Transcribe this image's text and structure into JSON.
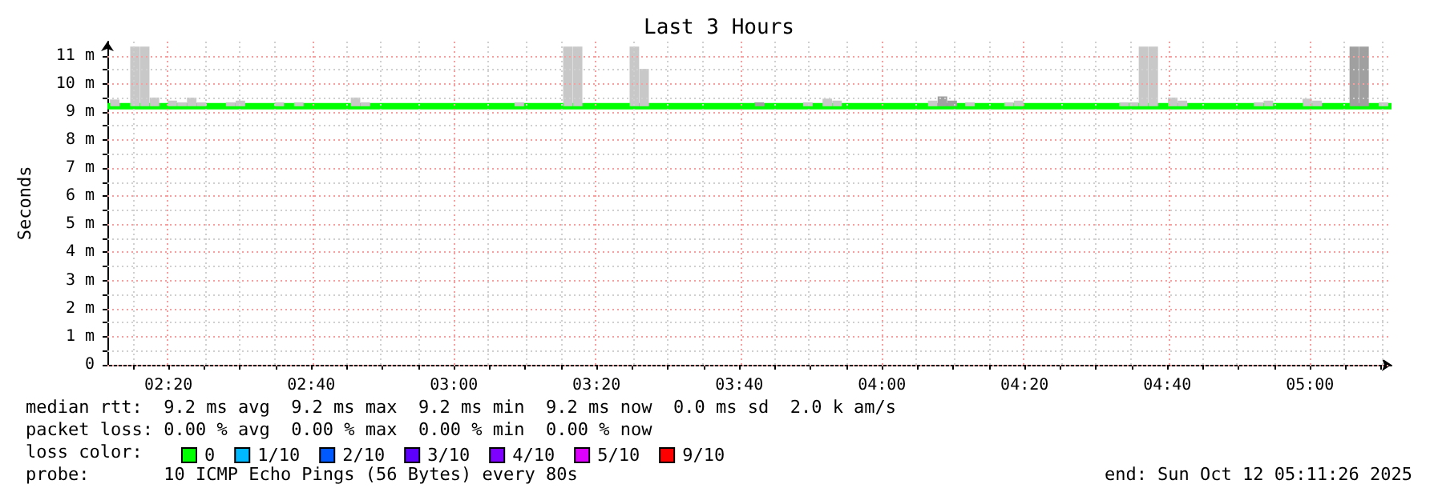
{
  "chart_data": {
    "type": "line",
    "title": "Last 3 Hours",
    "ylabel": "Seconds",
    "legend_title": "loss color:",
    "legend": "bottom",
    "grid": true,
    "marker": "none",
    "line_style": "solid",
    "x": [
      2.1906,
      5.1906
    ],
    "xlim": [
      2.1906,
      5.1906
    ],
    "xticks": [
      {
        "value": 2.25,
        "label": null
      },
      {
        "value": 2.3333,
        "label": "02:20"
      },
      {
        "value": 2.4167,
        "label": null
      },
      {
        "value": 2.5,
        "label": null
      },
      {
        "value": 2.5833,
        "label": null
      },
      {
        "value": 2.6667,
        "label": "02:40"
      },
      {
        "value": 2.75,
        "label": null
      },
      {
        "value": 2.8333,
        "label": null
      },
      {
        "value": 2.9167,
        "label": null
      },
      {
        "value": 3,
        "label": "03:00"
      },
      {
        "value": 3.0833,
        "label": null
      },
      {
        "value": 3.1667,
        "label": null
      },
      {
        "value": 3.25,
        "label": null
      },
      {
        "value": 3.3333,
        "label": "03:20"
      },
      {
        "value": 3.4167,
        "label": null
      },
      {
        "value": 3.5,
        "label": null
      },
      {
        "value": 3.5833,
        "label": null
      },
      {
        "value": 3.6667,
        "label": "03:40"
      },
      {
        "value": 3.75,
        "label": null
      },
      {
        "value": 3.8333,
        "label": null
      },
      {
        "value": 3.9167,
        "label": null
      },
      {
        "value": 4,
        "label": "04:00"
      },
      {
        "value": 4.0833,
        "label": null
      },
      {
        "value": 4.1667,
        "label": null
      },
      {
        "value": 4.25,
        "label": null
      },
      {
        "value": 4.3333,
        "label": "04:20"
      },
      {
        "value": 4.4167,
        "label": null
      },
      {
        "value": 4.5,
        "label": null
      },
      {
        "value": 4.5833,
        "label": null
      },
      {
        "value": 4.6667,
        "label": "04:40"
      },
      {
        "value": 4.75,
        "label": null
      },
      {
        "value": 4.8333,
        "label": null
      },
      {
        "value": 4.9167,
        "label": null
      },
      {
        "value": 5,
        "label": "05:00"
      },
      {
        "value": 5.0833,
        "label": null
      },
      {
        "value": 5.1667,
        "label": null
      }
    ],
    "ylim": [
      0,
      11.5
    ],
    "yticks": [
      0,
      {
        "value": 0.5,
        "label": null
      },
      {
        "value": 1,
        "label": "1 m"
      },
      {
        "value": 1.5,
        "label": null
      },
      {
        "value": 2,
        "label": "2 m"
      },
      {
        "value": 2.5,
        "label": null
      },
      {
        "value": 3,
        "label": "3 m"
      },
      {
        "value": 3.5,
        "label": null
      },
      {
        "value": 4,
        "label": "4 m"
      },
      {
        "value": 4.5,
        "label": null
      },
      {
        "value": 5,
        "label": "5 m"
      },
      {
        "value": 5.5,
        "label": null
      },
      {
        "value": 6,
        "label": "6 m"
      },
      {
        "value": 6.5,
        "label": null
      },
      {
        "value": 7,
        "label": "7 m"
      },
      {
        "value": 7.5,
        "label": null
      },
      {
        "value": 8,
        "label": "8 m"
      },
      {
        "value": 8.5,
        "label": null
      },
      {
        "value": 9,
        "label": "9 m"
      },
      {
        "value": 9.5,
        "label": null
      },
      {
        "value": 10,
        "label": "10 m"
      },
      {
        "value": 10.5,
        "label": null
      },
      {
        "value": 11,
        "label": "11 m"
      }
    ],
    "series": [
      {
        "type": "bar",
        "color": "#c8c8c8",
        "x": [
          2.2076,
          2.255,
          2.2777,
          2.3005,
          2.3421,
          2.3648,
          2.3876,
          2.4103,
          2.4785,
          2.5012,
          2.5921,
          2.6376,
          2.7702,
          2.7929,
          3.1528,
          3.2664,
          3.2891,
          3.4217,
          3.4444,
          3.827,
          3.8725,
          3.8952,
          4.1187,
          4.2058,
          4.2968,
          4.3195,
          4.5657,
          4.5884,
          4.6112,
          4.6339,
          4.6794,
          4.7021,
          4.8801,
          4.9029,
          4.9938,
          5.0165,
          5.1719
        ],
        "base": [
          9.2,
          9.2,
          9.2,
          9.2,
          9.2,
          9.2,
          9.2,
          9.2,
          9.2,
          9.2,
          9.2,
          9.2,
          9.2,
          9.2,
          9.2,
          9.2,
          9.2,
          9.2,
          9.2,
          9.2,
          9.2,
          9.2,
          9.2,
          9.2,
          9.2,
          9.2,
          9.2,
          9.2,
          9.2,
          9.2,
          9.2,
          9.2,
          9.2,
          9.2,
          9.2,
          9.2,
          9.2
        ],
        "values": [
          0.24,
          2.12,
          2.12,
          0.31,
          0.2,
          0.14,
          0.31,
          0.14,
          0.14,
          0.2,
          0.14,
          0.14,
          0.31,
          0.14,
          0.14,
          2.12,
          2.12,
          2.12,
          1.33,
          0.14,
          0.27,
          0.2,
          0.2,
          0.14,
          0.14,
          0.2,
          0.14,
          0.14,
          2.12,
          2.12,
          0.31,
          0.2,
          0.14,
          0.2,
          0.27,
          0.2,
          0.14
        ]
      },
      {
        "type": "bar",
        "color": "#a0a0a0",
        "x": [
          3.7134,
          4.1414,
          4.1642,
          5.1037,
          5.1264
        ],
        "base": [
          9.2,
          9.2,
          9.2,
          9.2,
          9.2
        ],
        "values": [
          0.14,
          0.35,
          0.2,
          2.12,
          2.12
        ]
      },
      {
        "name": "0",
        "color": "#00ff00",
        "values": [
          9.2,
          9.2
        ]
      },
      {
        "name": "1/10",
        "color": "#00b8ff",
        "values": [
          null,
          null
        ]
      },
      {
        "name": "2/10",
        "color": "#0059ff",
        "values": [
          null,
          null
        ]
      },
      {
        "name": "3/10",
        "color": "#5e00ff",
        "values": [
          null,
          null
        ]
      },
      {
        "name": "4/10",
        "color": "#7e00ff",
        "values": [
          null,
          null
        ]
      },
      {
        "name": "5/10",
        "color": "#dd00ff",
        "values": [
          null,
          null
        ]
      },
      {
        "name": "9/10",
        "color": "#ff0000",
        "values": [
          null,
          null
        ]
      }
    ],
    "annotations": [
      "median rtt:  9.2 ms avg  9.2 ms max  9.2 ms min  9.2 ms now  0.0 ms sd  2.0 k am/s",
      "packet loss: 0.00 % avg  0.00 % max  0.00 % min  0.00 % now",
      "probe:       10 ICMP Echo Pings (56 Bytes) every 80s",
      "end: Sun Oct 12 05:11:26 2025"
    ]
  }
}
